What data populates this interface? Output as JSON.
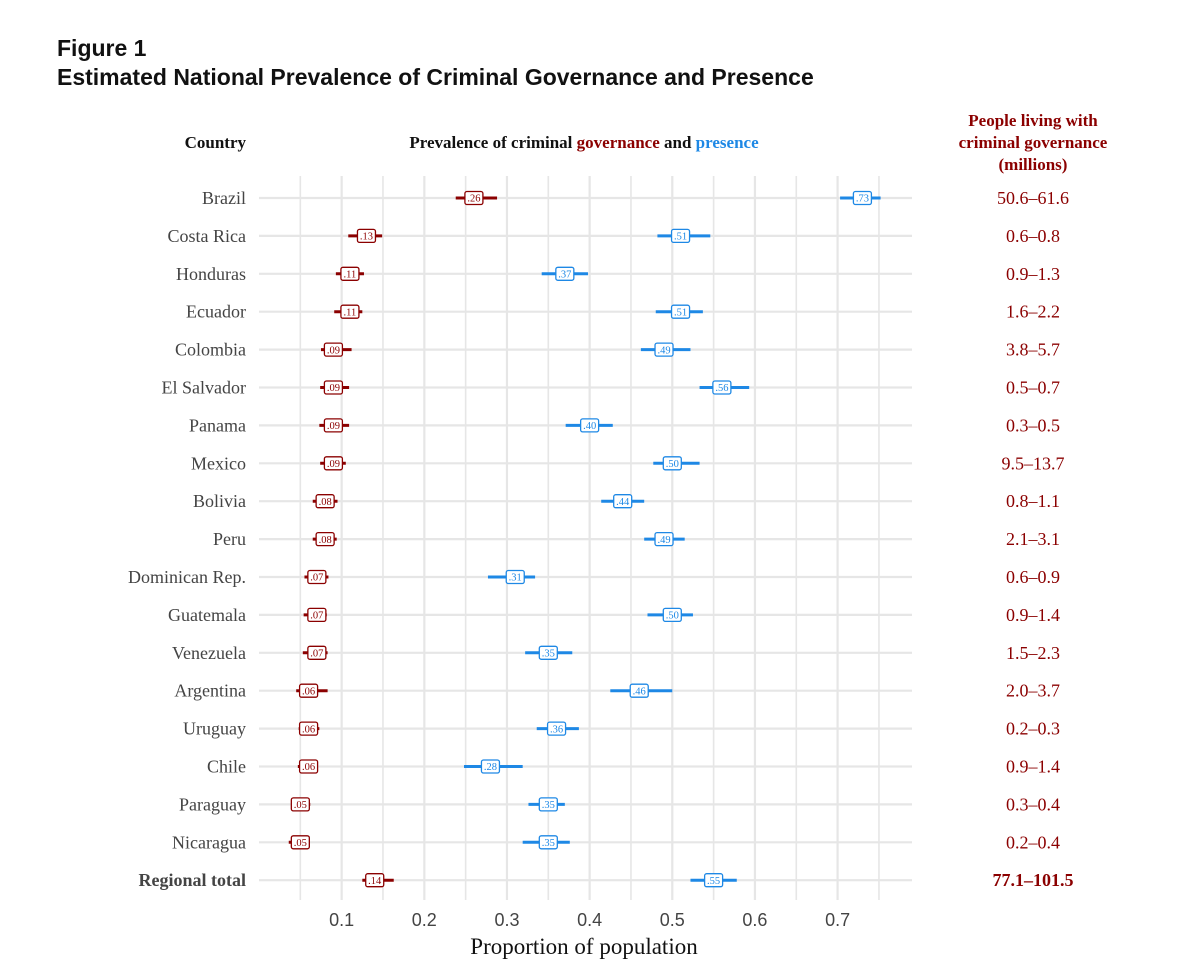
{
  "figure": {
    "label": "Figure 1",
    "title": "Estimated National Prevalence of Criminal Governance and Presence"
  },
  "colors": {
    "governance": "#8b0000",
    "presence": "#1e88e5",
    "grid": "#e6e6e6",
    "country_text": "#444444",
    "range_text": "#8b0000"
  },
  "chart_data": {
    "type": "dot-interval",
    "column_headers": {
      "country": "Country",
      "prevalence": {
        "prefix": "Prevalence of criminal ",
        "governance_word": "governance",
        "middle": " and ",
        "presence_word": "presence"
      },
      "people": [
        "People living with",
        "criminal governance",
        "(millions)"
      ]
    },
    "xlabel": "Proportion of population",
    "xlim": [
      0.0,
      0.79
    ],
    "xticks": [
      0.1,
      0.2,
      0.3,
      0.4,
      0.5,
      0.6,
      0.7
    ],
    "xtick_labels": [
      "0.1",
      "0.2",
      "0.3",
      "0.4",
      "0.5",
      "0.6",
      "0.7"
    ],
    "grid": true,
    "series": [
      {
        "name": "governance",
        "key": "gov"
      },
      {
        "name": "presence",
        "key": "pres"
      }
    ],
    "rows": [
      {
        "country": "Brazil",
        "gov": {
          "value": 0.26,
          "low": 0.238,
          "high": 0.288,
          "label": ".26"
        },
        "pres": {
          "value": 0.73,
          "low": 0.703,
          "high": 0.752,
          "label": ".73"
        },
        "people": "50.6–61.6"
      },
      {
        "country": "Costa Rica",
        "gov": {
          "value": 0.13,
          "low": 0.108,
          "high": 0.149,
          "label": ".13"
        },
        "pres": {
          "value": 0.51,
          "low": 0.482,
          "high": 0.546,
          "label": ".51"
        },
        "people": "0.6–0.8"
      },
      {
        "country": "Honduras",
        "gov": {
          "value": 0.11,
          "low": 0.093,
          "high": 0.127,
          "label": ".11"
        },
        "pres": {
          "value": 0.37,
          "low": 0.342,
          "high": 0.398,
          "label": ".37"
        },
        "people": "0.9–1.3"
      },
      {
        "country": "Ecuador",
        "gov": {
          "value": 0.11,
          "low": 0.091,
          "high": 0.125,
          "label": ".11"
        },
        "pres": {
          "value": 0.51,
          "low": 0.48,
          "high": 0.537,
          "label": ".51"
        },
        "people": "1.6–2.2"
      },
      {
        "country": "Colombia",
        "gov": {
          "value": 0.09,
          "low": 0.075,
          "high": 0.112,
          "label": ".09"
        },
        "pres": {
          "value": 0.49,
          "low": 0.462,
          "high": 0.522,
          "label": ".49"
        },
        "people": "3.8–5.7"
      },
      {
        "country": "El Salvador",
        "gov": {
          "value": 0.09,
          "low": 0.074,
          "high": 0.109,
          "label": ".09"
        },
        "pres": {
          "value": 0.56,
          "low": 0.533,
          "high": 0.593,
          "label": ".56"
        },
        "people": "0.5–0.7"
      },
      {
        "country": "Panama",
        "gov": {
          "value": 0.09,
          "low": 0.073,
          "high": 0.109,
          "label": ".09"
        },
        "pres": {
          "value": 0.4,
          "low": 0.371,
          "high": 0.428,
          "label": ".40"
        },
        "people": "0.3–0.5"
      },
      {
        "country": "Mexico",
        "gov": {
          "value": 0.09,
          "low": 0.074,
          "high": 0.105,
          "label": ".09"
        },
        "pres": {
          "value": 0.5,
          "low": 0.477,
          "high": 0.533,
          "label": ".50"
        },
        "people": "9.5–13.7"
      },
      {
        "country": "Bolivia",
        "gov": {
          "value": 0.08,
          "low": 0.065,
          "high": 0.095,
          "label": ".08"
        },
        "pres": {
          "value": 0.44,
          "low": 0.414,
          "high": 0.466,
          "label": ".44"
        },
        "people": "0.8–1.1"
      },
      {
        "country": "Peru",
        "gov": {
          "value": 0.08,
          "low": 0.065,
          "high": 0.094,
          "label": ".08"
        },
        "pres": {
          "value": 0.49,
          "low": 0.466,
          "high": 0.515,
          "label": ".49"
        },
        "people": "2.1–3.1"
      },
      {
        "country": "Dominican Rep.",
        "gov": {
          "value": 0.07,
          "low": 0.055,
          "high": 0.084,
          "label": ".07"
        },
        "pres": {
          "value": 0.31,
          "low": 0.277,
          "high": 0.334,
          "label": ".31"
        },
        "people": "0.6–0.9"
      },
      {
        "country": "Guatemala",
        "gov": {
          "value": 0.07,
          "low": 0.054,
          "high": 0.082,
          "label": ".07"
        },
        "pres": {
          "value": 0.5,
          "low": 0.47,
          "high": 0.525,
          "label": ".50"
        },
        "people": "0.9–1.4"
      },
      {
        "country": "Venezuela",
        "gov": {
          "value": 0.07,
          "low": 0.053,
          "high": 0.083,
          "label": ".07"
        },
        "pres": {
          "value": 0.35,
          "low": 0.322,
          "high": 0.379,
          "label": ".35"
        },
        "people": "1.5–2.3"
      },
      {
        "country": "Argentina",
        "gov": {
          "value": 0.06,
          "low": 0.045,
          "high": 0.083,
          "label": ".06"
        },
        "pres": {
          "value": 0.46,
          "low": 0.425,
          "high": 0.5,
          "label": ".46"
        },
        "people": "2.0–3.7"
      },
      {
        "country": "Uruguay",
        "gov": {
          "value": 0.06,
          "low": 0.048,
          "high": 0.073,
          "label": ".06"
        },
        "pres": {
          "value": 0.36,
          "low": 0.336,
          "high": 0.387,
          "label": ".36"
        },
        "people": "0.2–0.3"
      },
      {
        "country": "Chile",
        "gov": {
          "value": 0.06,
          "low": 0.047,
          "high": 0.071,
          "label": ".06"
        },
        "pres": {
          "value": 0.28,
          "low": 0.248,
          "high": 0.319,
          "label": ".28"
        },
        "people": "0.9–1.4"
      },
      {
        "country": "Paraguay",
        "gov": {
          "value": 0.05,
          "low": 0.04,
          "high": 0.062,
          "label": ".05"
        },
        "pres": {
          "value": 0.35,
          "low": 0.326,
          "high": 0.37,
          "label": ".35"
        },
        "people": "0.3–0.4"
      },
      {
        "country": "Nicaragua",
        "gov": {
          "value": 0.05,
          "low": 0.036,
          "high": 0.061,
          "label": ".05"
        },
        "pres": {
          "value": 0.35,
          "low": 0.319,
          "high": 0.376,
          "label": ".35"
        },
        "people": "0.2–0.4"
      },
      {
        "country": "Regional total",
        "bold": true,
        "gov": {
          "value": 0.14,
          "low": 0.125,
          "high": 0.163,
          "label": ".14"
        },
        "pres": {
          "value": 0.55,
          "low": 0.522,
          "high": 0.578,
          "label": ".55"
        },
        "people": "77.1–101.5"
      }
    ]
  }
}
